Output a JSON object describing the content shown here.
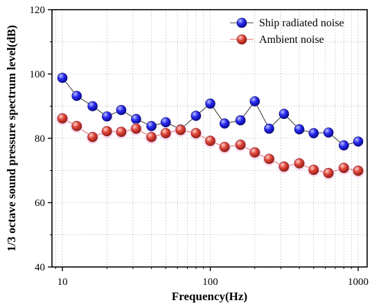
{
  "chart_data": {
    "type": "line",
    "xlabel": "Frequency(Hz)",
    "ylabel": "1/3 octave sound pressure spectrum level(dB)",
    "xscale": "log",
    "xlim": [
      8.5,
      1150
    ],
    "ylim": [
      40,
      120
    ],
    "x_ticks": [
      {
        "value": 10,
        "label": "10"
      },
      {
        "value": 100,
        "label": "100"
      },
      {
        "value": 1000,
        "label": "1000"
      }
    ],
    "y_ticks": [
      {
        "value": 40,
        "label": "40"
      },
      {
        "value": 60,
        "label": "60"
      },
      {
        "value": 80,
        "label": "80"
      },
      {
        "value": 100,
        "label": "100"
      },
      {
        "value": 120,
        "label": "120"
      }
    ],
    "grid": true,
    "legend_position": "top-right",
    "x": [
      10,
      12.5,
      16,
      20,
      25,
      31.5,
      40,
      50,
      63,
      80,
      100,
      125,
      160,
      200,
      250,
      315,
      400,
      500,
      630,
      800,
      1000
    ],
    "series": [
      {
        "name": "Ship radiated noise",
        "color": "#1010dd",
        "values": [
          98.8,
          93.2,
          90.0,
          86.8,
          88.8,
          86.0,
          83.8,
          85.0,
          82.8,
          87.0,
          90.8,
          84.6,
          85.6,
          91.5,
          83.0,
          87.6,
          82.8,
          81.6,
          81.8,
          77.8,
          79.0
        ]
      },
      {
        "name": "Ambient noise",
        "color": "#dd3b30",
        "values": [
          86.2,
          83.8,
          80.4,
          82.2,
          82.0,
          83.0,
          80.4,
          81.6,
          82.6,
          81.6,
          79.2,
          77.3,
          78.0,
          75.6,
          73.6,
          71.2,
          72.2,
          70.2,
          69.2,
          70.8,
          69.9
        ]
      }
    ]
  }
}
